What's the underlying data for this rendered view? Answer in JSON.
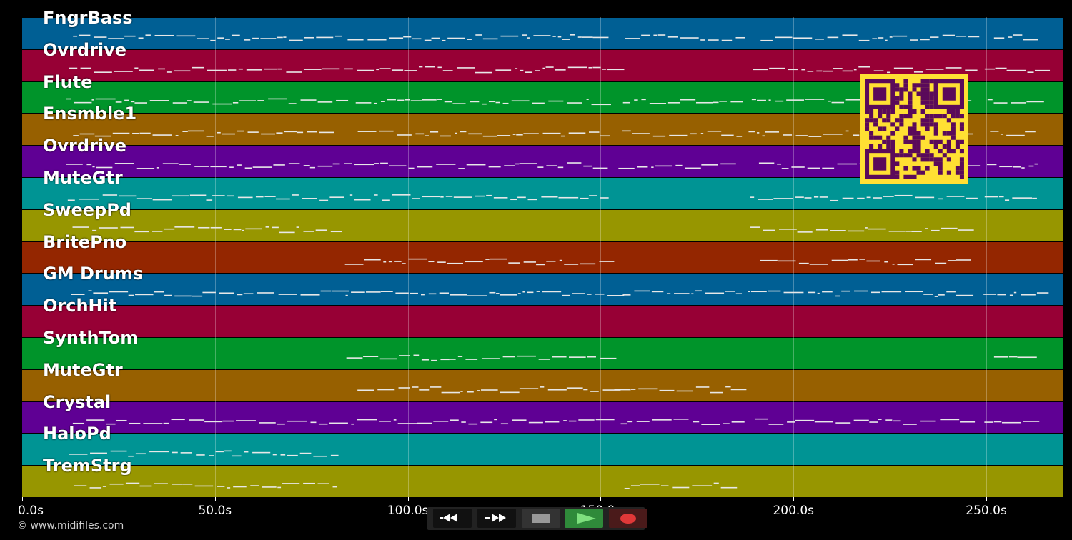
{
  "tracks": [
    {
      "name": "FngrBass",
      "color": "#005f94"
    },
    {
      "name": "Ovrdrive",
      "color": "#970035"
    },
    {
      "name": "Flute",
      "color": "#00942a"
    },
    {
      "name": "Ensmble1",
      "color": "#976000"
    },
    {
      "name": "Ovrdrive",
      "color": "#5f0094"
    },
    {
      "name": "MuteGtr",
      "color": "#009494"
    },
    {
      "name": "SweepPd",
      "color": "#979600"
    },
    {
      "name": "BritePno",
      "color": "#942600"
    },
    {
      "name": "GM Drums",
      "color": "#005f94"
    },
    {
      "name": "OrchHit",
      "color": "#970035"
    },
    {
      "name": "SynthTom",
      "color": "#00942a"
    },
    {
      "name": "MuteGtr",
      "color": "#976000"
    },
    {
      "name": "Crystal",
      "color": "#5f0094"
    },
    {
      "name": "HaloPd",
      "color": "#009494"
    },
    {
      "name": "TremStrg",
      "color": "#979600"
    }
  ],
  "timeline": {
    "ticks": [
      "0.0s",
      "50.0s",
      "100.0s",
      "150.0s",
      "200.0s",
      "250.0s"
    ],
    "tick_seconds": [
      0,
      50,
      100,
      150,
      200,
      250
    ],
    "max_seconds": 270
  },
  "copyright": "© www.midifiles.com",
  "transport": {
    "rewind": "rewind-icon",
    "fast_forward": "fast-forward-icon",
    "stop": "stop-icon",
    "play": "play-icon",
    "record": "record-icon",
    "colors": {
      "play": "#2f8a3a",
      "record": "#e03838",
      "record_bg": "#4a1a1a"
    }
  },
  "overlay": {
    "qr_code": "qr-code-icon",
    "qr_color": "#ffe033",
    "qr_dark": "#5a0a5a"
  }
}
